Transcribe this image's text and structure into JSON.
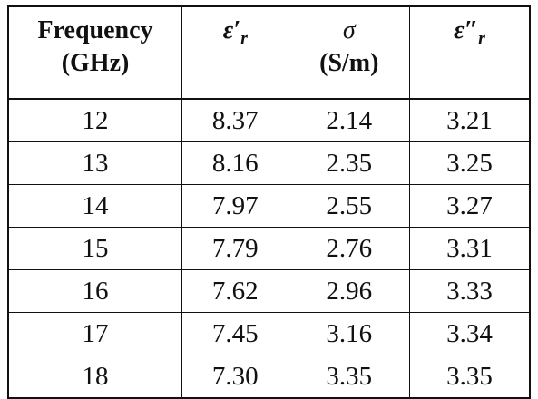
{
  "table": {
    "headers": [
      {
        "lines": [
          "Frequency",
          "(GHz)"
        ]
      },
      {
        "symbol": "ε′",
        "sub": "r"
      },
      {
        "lines": [
          "σ",
          "(S/m)"
        ]
      },
      {
        "symbol": "ε″",
        "sub": "r"
      }
    ],
    "rows": [
      [
        "12",
        "8.37",
        "2.14",
        "3.21"
      ],
      [
        "13",
        "8.16",
        "2.35",
        "3.25"
      ],
      [
        "14",
        "7.97",
        "2.55",
        "3.27"
      ],
      [
        "15",
        "7.79",
        "2.76",
        "3.31"
      ],
      [
        "16",
        "7.62",
        "2.96",
        "3.33"
      ],
      [
        "17",
        "7.45",
        "3.16",
        "3.34"
      ],
      [
        "18",
        "7.30",
        "3.35",
        "3.35"
      ]
    ]
  }
}
